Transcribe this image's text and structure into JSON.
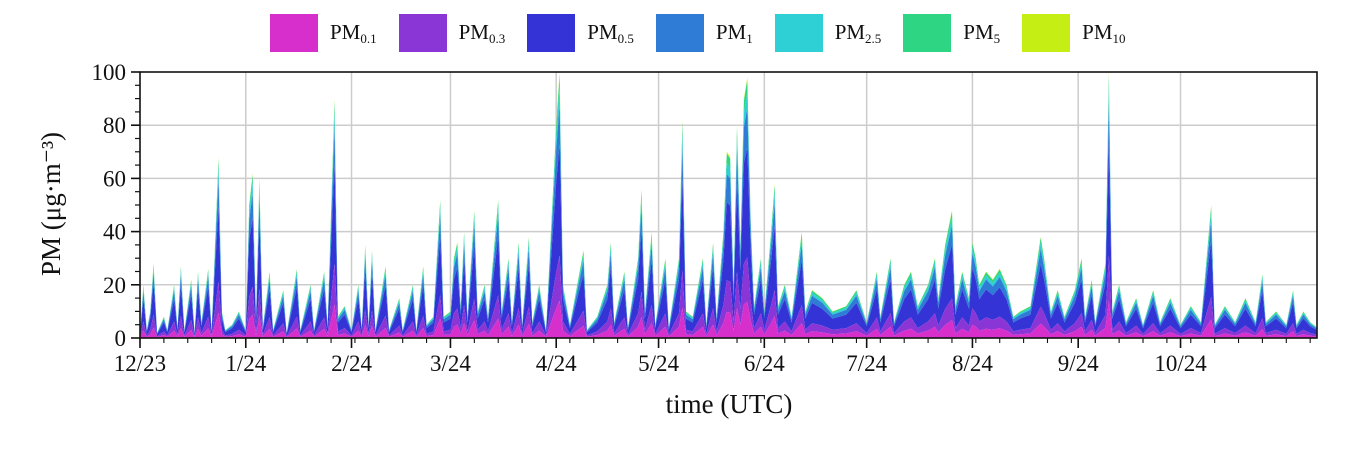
{
  "chart_data": {
    "type": "area",
    "stacked": true,
    "xlabel": "time (UTC)",
    "ylabel": "PM (μg·m⁻³)",
    "ylim": [
      0,
      100
    ],
    "yticks": [
      0,
      20,
      40,
      60,
      80,
      100
    ],
    "xlim": [
      "2023-12-01",
      "2024-11-10"
    ],
    "xticks": [
      {
        "date": "2023-12-01",
        "label": "12/23"
      },
      {
        "date": "2024-01-01",
        "label": "1/24"
      },
      {
        "date": "2024-02-01",
        "label": "2/24"
      },
      {
        "date": "2024-03-01",
        "label": "3/24"
      },
      {
        "date": "2024-04-01",
        "label": "4/24"
      },
      {
        "date": "2024-05-01",
        "label": "5/24"
      },
      {
        "date": "2024-06-01",
        "label": "6/24"
      },
      {
        "date": "2024-07-01",
        "label": "7/24"
      },
      {
        "date": "2024-08-01",
        "label": "8/24"
      },
      {
        "date": "2024-09-01",
        "label": "9/24"
      },
      {
        "date": "2024-10-01",
        "label": "10/24"
      }
    ],
    "grid": true,
    "legend_position": "top",
    "series": [
      {
        "key": "pm01",
        "base": "PM",
        "sub": "0.1",
        "color": "#d62fcc"
      },
      {
        "key": "pm03",
        "base": "PM",
        "sub": "0.3",
        "color": "#8a35d6"
      },
      {
        "key": "pm05",
        "base": "PM",
        "sub": "0.5",
        "color": "#3333d6"
      },
      {
        "key": "pm1",
        "base": "PM",
        "sub": "1",
        "color": "#2e7cd6"
      },
      {
        "key": "pm25",
        "base": "PM",
        "sub": "2.5",
        "color": "#2fcfd6"
      },
      {
        "key": "pm5",
        "base": "PM",
        "sub": "5",
        "color": "#2ed684"
      },
      {
        "key": "pm10",
        "base": "PM",
        "sub": "10",
        "color": "#c4ee14"
      }
    ],
    "total_points": [
      [
        "2023-12-01",
        2
      ],
      [
        "2023-12-02",
        20
      ],
      [
        "2023-12-03",
        3
      ],
      [
        "2023-12-04",
        10
      ],
      [
        "2023-12-05",
        28
      ],
      [
        "2023-12-06",
        2
      ],
      [
        "2023-12-08",
        8
      ],
      [
        "2023-12-09",
        3
      ],
      [
        "2023-12-11",
        20
      ],
      [
        "2023-12-12",
        4
      ],
      [
        "2023-12-13",
        27
      ],
      [
        "2023-12-14",
        3
      ],
      [
        "2023-12-16",
        22
      ],
      [
        "2023-12-17",
        2
      ],
      [
        "2023-12-18",
        25
      ],
      [
        "2023-12-19",
        6
      ],
      [
        "2023-12-21",
        26
      ],
      [
        "2023-12-22",
        3
      ],
      [
        "2023-12-24",
        68
      ],
      [
        "2023-12-25",
        10
      ],
      [
        "2023-12-26",
        3
      ],
      [
        "2023-12-28",
        5
      ],
      [
        "2023-12-30",
        10
      ],
      [
        "2024-01-01",
        3
      ],
      [
        "2024-01-02",
        50
      ],
      [
        "2024-01-03",
        62
      ],
      [
        "2024-01-04",
        8
      ],
      [
        "2024-01-05",
        60
      ],
      [
        "2024-01-06",
        4
      ],
      [
        "2024-01-08",
        25
      ],
      [
        "2024-01-09",
        3
      ],
      [
        "2024-01-12",
        18
      ],
      [
        "2024-01-13",
        2
      ],
      [
        "2024-01-16",
        26
      ],
      [
        "2024-01-17",
        3
      ],
      [
        "2024-01-20",
        20
      ],
      [
        "2024-01-21",
        3
      ],
      [
        "2024-01-24",
        25
      ],
      [
        "2024-01-25",
        5
      ],
      [
        "2024-01-27",
        90
      ],
      [
        "2024-01-28",
        8
      ],
      [
        "2024-01-30",
        12
      ],
      [
        "2024-02-01",
        3
      ],
      [
        "2024-02-03",
        20
      ],
      [
        "2024-02-04",
        4
      ],
      [
        "2024-02-05",
        35
      ],
      [
        "2024-02-06",
        5
      ],
      [
        "2024-02-07",
        33
      ],
      [
        "2024-02-08",
        3
      ],
      [
        "2024-02-11",
        27
      ],
      [
        "2024-02-12",
        3
      ],
      [
        "2024-02-15",
        15
      ],
      [
        "2024-02-16",
        3
      ],
      [
        "2024-02-19",
        20
      ],
      [
        "2024-02-20",
        3
      ],
      [
        "2024-02-22",
        27
      ],
      [
        "2024-02-23",
        5
      ],
      [
        "2024-02-25",
        8
      ],
      [
        "2024-02-27",
        52
      ],
      [
        "2024-02-28",
        8
      ],
      [
        "2024-03-01",
        10
      ],
      [
        "2024-03-02",
        30
      ],
      [
        "2024-03-03",
        36
      ],
      [
        "2024-03-04",
        12
      ],
      [
        "2024-03-05",
        40
      ],
      [
        "2024-03-06",
        8
      ],
      [
        "2024-03-08",
        48
      ],
      [
        "2024-03-09",
        10
      ],
      [
        "2024-03-11",
        20
      ],
      [
        "2024-03-12",
        8
      ],
      [
        "2024-03-15",
        52
      ],
      [
        "2024-03-16",
        10
      ],
      [
        "2024-03-18",
        30
      ],
      [
        "2024-03-19",
        6
      ],
      [
        "2024-03-21",
        36
      ],
      [
        "2024-03-22",
        5
      ],
      [
        "2024-03-24",
        38
      ],
      [
        "2024-03-25",
        6
      ],
      [
        "2024-03-27",
        20
      ],
      [
        "2024-03-29",
        3
      ],
      [
        "2024-04-01",
        80
      ],
      [
        "2024-04-02",
        100
      ],
      [
        "2024-04-03",
        20
      ],
      [
        "2024-04-05",
        5
      ],
      [
        "2024-04-09",
        33
      ],
      [
        "2024-04-10",
        3
      ],
      [
        "2024-04-13",
        8
      ],
      [
        "2024-04-16",
        20
      ],
      [
        "2024-04-17",
        36
      ],
      [
        "2024-04-18",
        6
      ],
      [
        "2024-04-21",
        25
      ],
      [
        "2024-04-22",
        4
      ],
      [
        "2024-04-25",
        30
      ],
      [
        "2024-04-26",
        56
      ],
      [
        "2024-04-27",
        10
      ],
      [
        "2024-04-29",
        40
      ],
      [
        "2024-04-30",
        5
      ],
      [
        "2024-05-03",
        30
      ],
      [
        "2024-05-04",
        4
      ],
      [
        "2024-05-07",
        30
      ],
      [
        "2024-05-08",
        82
      ],
      [
        "2024-05-09",
        10
      ],
      [
        "2024-05-11",
        8
      ],
      [
        "2024-05-14",
        30
      ],
      [
        "2024-05-15",
        5
      ],
      [
        "2024-05-17",
        36
      ],
      [
        "2024-05-18",
        8
      ],
      [
        "2024-05-20",
        40
      ],
      [
        "2024-05-21",
        70
      ],
      [
        "2024-05-22",
        68
      ],
      [
        "2024-05-23",
        20
      ],
      [
        "2024-05-24",
        80
      ],
      [
        "2024-05-25",
        35
      ],
      [
        "2024-05-26",
        90
      ],
      [
        "2024-05-27",
        98
      ],
      [
        "2024-05-28",
        45
      ],
      [
        "2024-05-29",
        12
      ],
      [
        "2024-05-31",
        30
      ],
      [
        "2024-06-01",
        10
      ],
      [
        "2024-06-03",
        40
      ],
      [
        "2024-06-04",
        58
      ],
      [
        "2024-06-05",
        12
      ],
      [
        "2024-06-07",
        20
      ],
      [
        "2024-06-09",
        8
      ],
      [
        "2024-06-12",
        40
      ],
      [
        "2024-06-13",
        10
      ],
      [
        "2024-06-15",
        18
      ],
      [
        "2024-06-18",
        15
      ],
      [
        "2024-06-21",
        10
      ],
      [
        "2024-06-25",
        12
      ],
      [
        "2024-06-28",
        18
      ],
      [
        "2024-07-01",
        6
      ],
      [
        "2024-07-04",
        25
      ],
      [
        "2024-07-05",
        8
      ],
      [
        "2024-07-08",
        30
      ],
      [
        "2024-07-09",
        6
      ],
      [
        "2024-07-12",
        20
      ],
      [
        "2024-07-14",
        25
      ],
      [
        "2024-07-16",
        12
      ],
      [
        "2024-07-19",
        20
      ],
      [
        "2024-07-21",
        30
      ],
      [
        "2024-07-22",
        15
      ],
      [
        "2024-07-24",
        35
      ],
      [
        "2024-07-26",
        48
      ],
      [
        "2024-07-27",
        12
      ],
      [
        "2024-07-29",
        25
      ],
      [
        "2024-07-31",
        15
      ],
      [
        "2024-08-01",
        36
      ],
      [
        "2024-08-02",
        30
      ],
      [
        "2024-08-03",
        20
      ],
      [
        "2024-08-05",
        25
      ],
      [
        "2024-08-07",
        22
      ],
      [
        "2024-08-09",
        26
      ],
      [
        "2024-08-11",
        20
      ],
      [
        "2024-08-13",
        8
      ],
      [
        "2024-08-15",
        10
      ],
      [
        "2024-08-18",
        12
      ],
      [
        "2024-08-21",
        38
      ],
      [
        "2024-08-22",
        30
      ],
      [
        "2024-08-24",
        10
      ],
      [
        "2024-08-26",
        18
      ],
      [
        "2024-08-28",
        8
      ],
      [
        "2024-08-31",
        18
      ],
      [
        "2024-09-02",
        30
      ],
      [
        "2024-09-03",
        8
      ],
      [
        "2024-09-05",
        22
      ],
      [
        "2024-09-06",
        6
      ],
      [
        "2024-09-09",
        28
      ],
      [
        "2024-09-10",
        100
      ],
      [
        "2024-09-11",
        10
      ],
      [
        "2024-09-13",
        20
      ],
      [
        "2024-09-15",
        6
      ],
      [
        "2024-09-18",
        15
      ],
      [
        "2024-09-20",
        5
      ],
      [
        "2024-09-23",
        18
      ],
      [
        "2024-09-25",
        6
      ],
      [
        "2024-09-28",
        15
      ],
      [
        "2024-10-01",
        5
      ],
      [
        "2024-10-04",
        12
      ],
      [
        "2024-10-07",
        6
      ],
      [
        "2024-10-10",
        50
      ],
      [
        "2024-10-11",
        5
      ],
      [
        "2024-10-14",
        12
      ],
      [
        "2024-10-17",
        6
      ],
      [
        "2024-10-20",
        15
      ],
      [
        "2024-10-23",
        6
      ],
      [
        "2024-10-25",
        24
      ],
      [
        "2024-10-26",
        6
      ],
      [
        "2024-10-29",
        10
      ],
      [
        "2024-11-01",
        5
      ],
      [
        "2024-11-03",
        18
      ],
      [
        "2024-11-04",
        5
      ],
      [
        "2024-11-06",
        10
      ],
      [
        "2024-11-08",
        6
      ],
      [
        "2024-11-10",
        4
      ]
    ],
    "composition_fraction": [
      0.14,
      0.17,
      0.42,
      0.15,
      0.06,
      0.05,
      0.01
    ]
  }
}
